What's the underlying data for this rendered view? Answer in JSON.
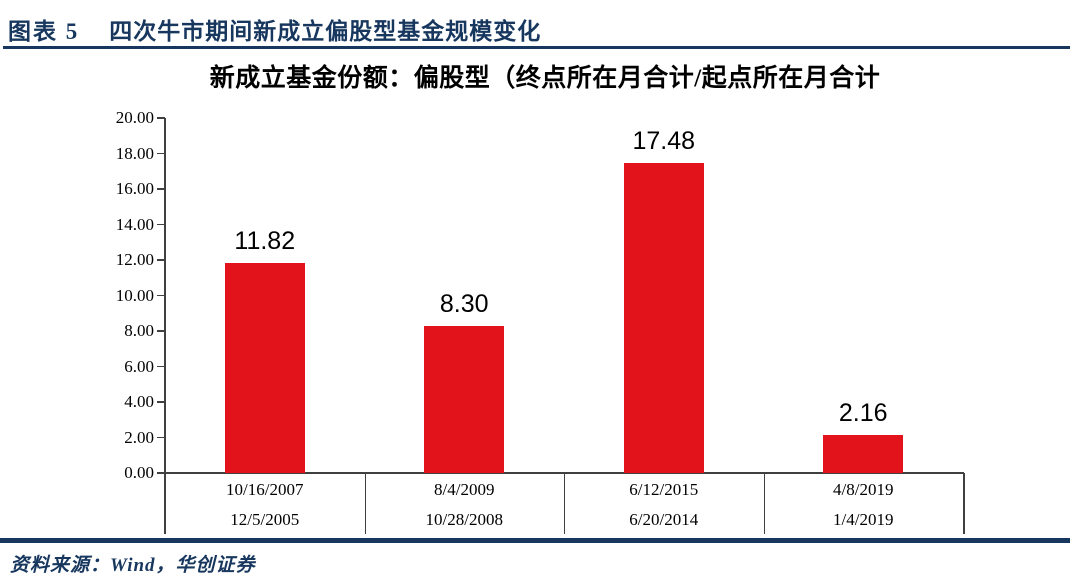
{
  "header": {
    "label": "图表 5",
    "title": "四次牛市期间新成立偏股型基金规模变化"
  },
  "footer": {
    "source": "资料来源：Wind，华创证券"
  },
  "colors": {
    "navy": "#17375E",
    "bar_red": "#E3131B",
    "axis_gray": "#404040"
  },
  "chart_data": {
    "type": "bar",
    "title": "新成立基金份额：偏股型（终点所在月合计/起点所在月合计",
    "categories": [
      {
        "line1": "10/16/2007",
        "line2": "12/5/2005"
      },
      {
        "line1": "8/4/2009",
        "line2": "10/28/2008"
      },
      {
        "line1": "6/12/2015",
        "line2": "6/20/2014"
      },
      {
        "line1": "4/8/2019",
        "line2": "1/4/2019"
      }
    ],
    "values": [
      11.82,
      8.3,
      17.48,
      2.16
    ],
    "data_labels": [
      "11.82",
      "8.30",
      "17.48",
      "2.16"
    ],
    "ylim": [
      0,
      20
    ],
    "ytick_step": 2,
    "ytick_labels": [
      "0.00",
      "2.00",
      "4.00",
      "6.00",
      "8.00",
      "10.00",
      "12.00",
      "14.00",
      "16.00",
      "18.00",
      "20.00"
    ],
    "grid": false,
    "legend": "none",
    "bar_color": "#E3131B"
  }
}
